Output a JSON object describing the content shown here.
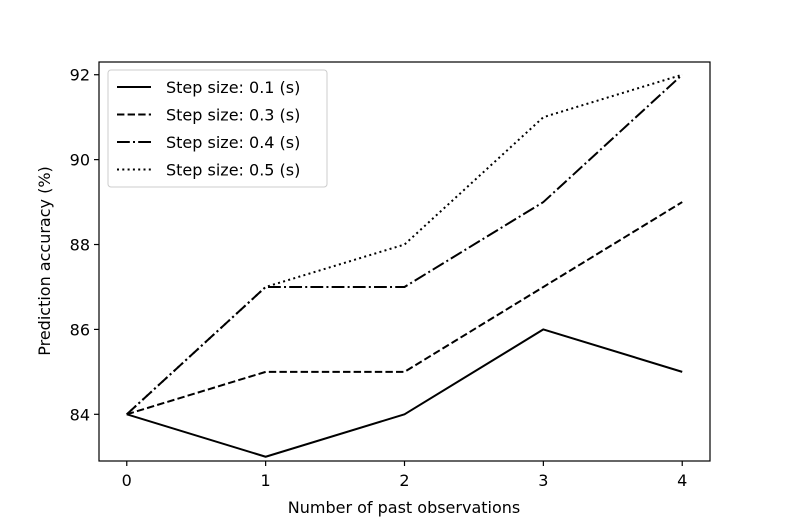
{
  "chart_data": {
    "type": "line",
    "title": "",
    "xlabel": "Number of past observations",
    "ylabel": "Prediction accuracy (%)",
    "x": [
      0,
      1,
      2,
      3,
      4
    ],
    "xlim": [
      -0.2,
      4.2
    ],
    "ylim": [
      82.9,
      92.3
    ],
    "xticks": [
      0,
      1,
      2,
      3,
      4
    ],
    "yticks": [
      84,
      86,
      88,
      90,
      92
    ],
    "grid": false,
    "legend_position": "upper-left",
    "series": [
      {
        "name": "Step size: 0.1 (s)",
        "values": [
          84,
          83,
          84,
          86,
          85
        ],
        "style": "solid",
        "color": "#000000"
      },
      {
        "name": "Step size: 0.3 (s)",
        "values": [
          84,
          85,
          85,
          87,
          89
        ],
        "style": "dashed",
        "color": "#000000"
      },
      {
        "name": "Step size: 0.4 (s)",
        "values": [
          84,
          87,
          87,
          89,
          92
        ],
        "style": "dashdot",
        "color": "#000000"
      },
      {
        "name": "Step size: 0.5 (s)",
        "values": [
          84,
          87,
          88,
          91,
          92
        ],
        "style": "dotted",
        "color": "#000000"
      }
    ]
  }
}
